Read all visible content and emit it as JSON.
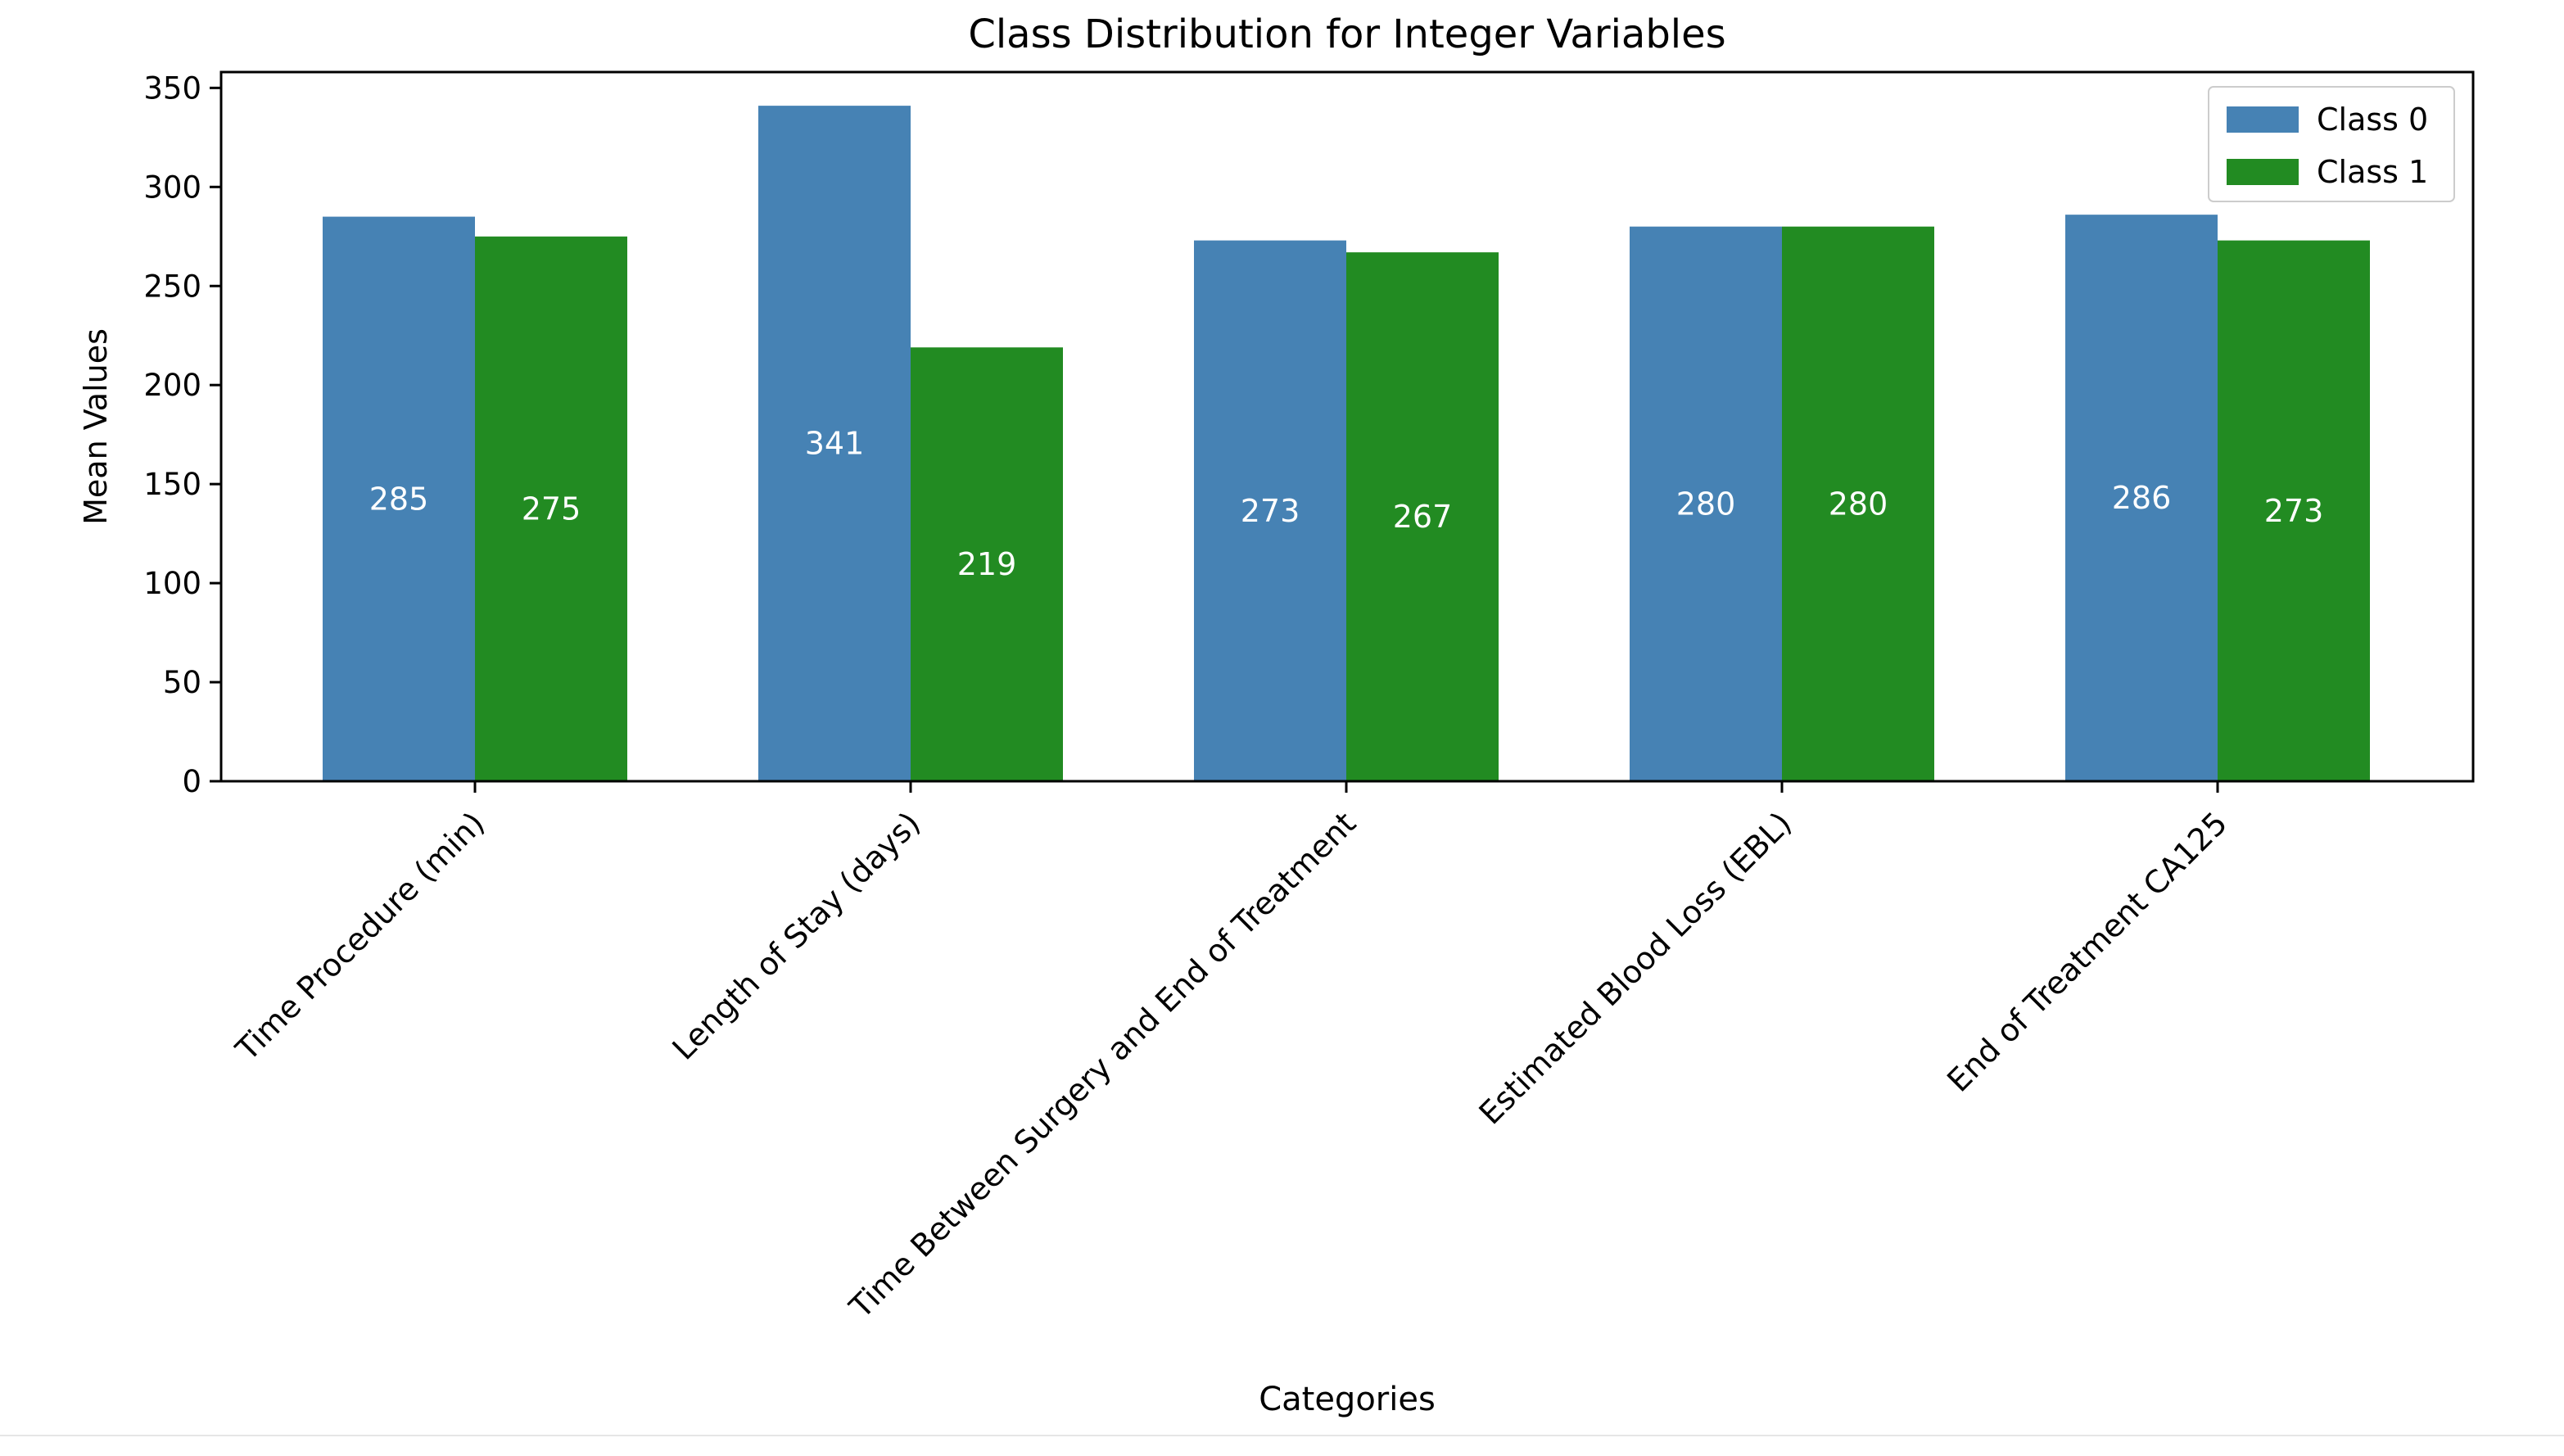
{
  "chart_data": {
    "type": "bar",
    "title": "Class Distribution for Integer Variables",
    "xlabel": "Categories",
    "ylabel": "Mean Values",
    "categories": [
      "Time Procedure (min)",
      "Length of Stay (days)",
      "Time Between Surgery and End of Treatment",
      "Estimated Blood Loss (EBL)",
      "End of Treatment CA125"
    ],
    "series": [
      {
        "name": "Class 0",
        "color": "#4682b4",
        "values": [
          285,
          341,
          273,
          280,
          286
        ]
      },
      {
        "name": "Class 1",
        "color": "#228b22",
        "values": [
          275,
          219,
          267,
          280,
          273
        ]
      }
    ],
    "ylim": [
      0,
      358
    ],
    "yticks": [
      0,
      50,
      100,
      150,
      200,
      250,
      300,
      350
    ],
    "xtick_rotation": 45,
    "legend": "top-right",
    "grid": false
  }
}
